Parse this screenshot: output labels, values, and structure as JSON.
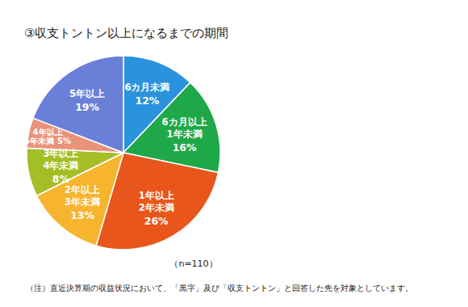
{
  "chart_data": {
    "type": "pie",
    "title": "③収支トントン以上になるまでの期間",
    "categories": [
      "6カ月未満",
      "6カ月以上\n1年未満",
      "1年以上\n2年未満",
      "2年以上\n3年未満",
      "3年以上\n4年未満",
      "4年以上\n5年未満",
      "5年以上"
    ],
    "values": [
      12,
      16,
      26,
      13,
      8,
      5,
      19
    ],
    "value_labels": [
      "12%",
      "16%",
      "26%",
      "13%",
      "8%",
      "5%",
      "19%"
    ],
    "colors": [
      "#2b93de",
      "#1fa84a",
      "#e8561b",
      "#f6b42f",
      "#a4be26",
      "#e9937b",
      "#6a7fd7"
    ],
    "data_labels": true,
    "annotations": [
      "（n=110）",
      "（注）直近決算期の収益状況において、「黒字」及び「収支トントン」と回答した先を対象としています。"
    ]
  }
}
